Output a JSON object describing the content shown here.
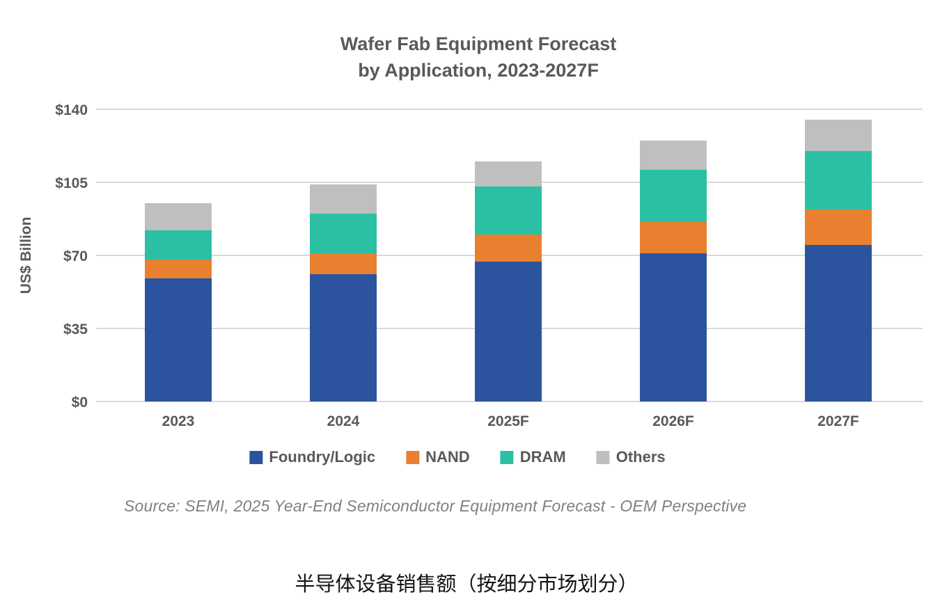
{
  "page": {
    "title_line1": "Wafer Fab Equipment Forecast",
    "title_line2": "by Application, 2023-2027F",
    "source": "Source: SEMI, 2025 Year-End Semiconductor Equipment Forecast - OEM Perspective",
    "caption": "半导体设备销售额（按细分市场划分）"
  },
  "colors": {
    "title_text": "#595959",
    "axis_text": "#595959",
    "gridline": "#d9d9d9",
    "source_text": "#808080",
    "caption_text": "#141414"
  },
  "chart_data": {
    "type": "bar",
    "stacked": true,
    "title": "Wafer Fab Equipment Forecast by Application, 2023-2027F",
    "xlabel": "",
    "ylabel": "US$ Billion",
    "categories": [
      "2023",
      "2024",
      "2025F",
      "2026F",
      "2027F"
    ],
    "series": [
      {
        "name": "Foundry/Logic",
        "color": "#2c549e",
        "values": [
          59,
          61,
          67,
          71,
          75
        ]
      },
      {
        "name": "NAND",
        "color": "#e8802f",
        "values": [
          9,
          10,
          13,
          15,
          17
        ]
      },
      {
        "name": "DRAM",
        "color": "#2bc0a4",
        "values": [
          14,
          19,
          23,
          25,
          28
        ]
      },
      {
        "name": "Others",
        "color": "#bfbfbf",
        "values": [
          13,
          14,
          12,
          14,
          15
        ]
      }
    ],
    "totals": [
      95,
      104,
      115,
      125,
      135
    ],
    "ylim": [
      0,
      140
    ],
    "yticks": [
      0,
      35,
      70,
      105,
      140
    ],
    "ytick_labels": [
      "$0",
      "$35",
      "$70",
      "$105",
      "$140"
    ],
    "grid": "horizontal",
    "legend_position": "bottom"
  }
}
